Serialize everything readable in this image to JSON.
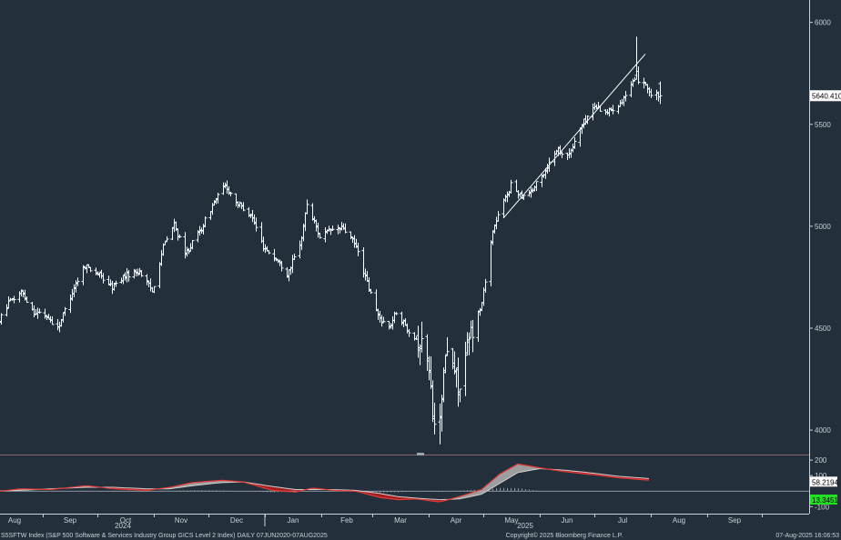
{
  "chart_data": [
    {
      "type": "ohlc",
      "ticker": "S5SFTW Index (S&P 500 Software & Services Industry Group GICS Level 2 Index) DAILY",
      "y_axis_position": "right",
      "ylim": [
        3880,
        6110
      ],
      "yticks": [
        4000,
        4500,
        5000,
        5500,
        6000
      ],
      "last_price_label": "5640.4102",
      "last_price": 5640.41,
      "x_tick_labels": [
        "Aug",
        "Sep",
        "Oct",
        "Nov",
        "Dec",
        "Jan",
        "Feb",
        "Mar",
        "Apr",
        "May",
        "Jun",
        "Jul",
        "Aug",
        "Sep"
      ],
      "year_labels": [
        "2024",
        "2025"
      ],
      "trendline": {
        "from": [
          "2025-05-12",
          5040
        ],
        "to": [
          "2025-07-29",
          5845
        ]
      },
      "bar_color": "#ffffff",
      "anchors": [
        [
          "2024-08-07",
          4520
        ],
        [
          "2024-08-13",
          4620
        ],
        [
          "2024-08-20",
          4680
        ],
        [
          "2024-08-27",
          4580
        ],
        [
          "2024-09-03",
          4560
        ],
        [
          "2024-09-09",
          4500
        ],
        [
          "2024-09-18",
          4700
        ],
        [
          "2024-09-24",
          4810
        ],
        [
          "2024-10-02",
          4760
        ],
        [
          "2024-10-09",
          4700
        ],
        [
          "2024-10-16",
          4760
        ],
        [
          "2024-10-24",
          4780
        ],
        [
          "2024-10-31",
          4680
        ],
        [
          "2024-11-06",
          4900
        ],
        [
          "2024-11-12",
          5010
        ],
        [
          "2024-11-18",
          4860
        ],
        [
          "2024-11-27",
          4990
        ],
        [
          "2024-12-04",
          5120
        ],
        [
          "2024-12-10",
          5200
        ],
        [
          "2024-12-17",
          5110
        ],
        [
          "2024-12-24",
          5060
        ],
        [
          "2024-12-31",
          4900
        ],
        [
          "2025-01-08",
          4830
        ],
        [
          "2025-01-13",
          4770
        ],
        [
          "2025-01-20",
          4900
        ],
        [
          "2025-01-24",
          5110
        ],
        [
          "2025-01-31",
          4950
        ],
        [
          "2025-02-06",
          4980
        ],
        [
          "2025-02-13",
          4990
        ],
        [
          "2025-02-20",
          4900
        ],
        [
          "2025-02-26",
          4720
        ],
        [
          "2025-03-04",
          4560
        ],
        [
          "2025-03-10",
          4500
        ],
        [
          "2025-03-14",
          4580
        ],
        [
          "2025-03-20",
          4500
        ],
        [
          "2025-03-25",
          4450
        ],
        [
          "2025-03-31",
          4380
        ],
        [
          "2025-04-03",
          4100
        ],
        [
          "2025-04-07",
          4000
        ],
        [
          "2025-04-10",
          4380
        ],
        [
          "2025-04-14",
          4320
        ],
        [
          "2025-04-18",
          4200
        ],
        [
          "2025-04-23",
          4450
        ],
        [
          "2025-04-30",
          4620
        ],
        [
          "2025-05-06",
          4980
        ],
        [
          "2025-05-12",
          5120
        ],
        [
          "2025-05-16",
          5200
        ],
        [
          "2025-05-22",
          5150
        ],
        [
          "2025-05-28",
          5180
        ],
        [
          "2025-06-03",
          5260
        ],
        [
          "2025-06-10",
          5380
        ],
        [
          "2025-06-17",
          5350
        ],
        [
          "2025-06-24",
          5500
        ],
        [
          "2025-07-01",
          5590
        ],
        [
          "2025-07-08",
          5560
        ],
        [
          "2025-07-14",
          5600
        ],
        [
          "2025-07-18",
          5640
        ],
        [
          "2025-07-22",
          5700
        ],
        [
          "2025-07-25",
          5720
        ],
        [
          "2025-07-29",
          5700
        ],
        [
          "2025-08-01",
          5640
        ]
      ],
      "special_bars": [
        [
          "2025-04-07",
          4040,
          4130,
          3930,
          4060
        ],
        [
          "2025-07-24",
          5740,
          5930,
          5720,
          5760
        ],
        [
          "2025-08-06",
          5700,
          5710,
          5600,
          5640
        ]
      ]
    },
    {
      "type": "indicator",
      "ylim": [
        -145,
        230
      ],
      "yticks": [
        200,
        100,
        -100
      ],
      "zero_line": 0,
      "labels": {
        "upper_line": "58.2194",
        "histogram": "13.3451"
      },
      "colors": {
        "upper_line": "#e53935",
        "lower_line": "#d0d0d0",
        "histogram": "#21e021",
        "fill_pos": "#b0b0b0",
        "fill_neg": "#b71c1c"
      },
      "line_a": [
        [
          "2024-08-01",
          -10
        ],
        [
          "2024-08-20",
          15
        ],
        [
          "2024-09-05",
          10
        ],
        [
          "2024-09-25",
          35
        ],
        [
          "2024-10-10",
          15
        ],
        [
          "2024-10-28",
          5
        ],
        [
          "2024-11-10",
          25
        ],
        [
          "2024-11-22",
          55
        ],
        [
          "2024-12-08",
          70
        ],
        [
          "2024-12-20",
          60
        ],
        [
          "2025-01-05",
          5
        ],
        [
          "2025-01-18",
          -5
        ],
        [
          "2025-01-27",
          20
        ],
        [
          "2025-02-08",
          5
        ],
        [
          "2025-02-20",
          0
        ],
        [
          "2025-03-05",
          -40
        ],
        [
          "2025-03-15",
          -55
        ],
        [
          "2025-03-25",
          -50
        ],
        [
          "2025-04-07",
          -70
        ],
        [
          "2025-04-18",
          -35
        ],
        [
          "2025-04-30",
          10
        ],
        [
          "2025-05-10",
          110
        ],
        [
          "2025-05-20",
          175
        ],
        [
          "2025-06-01",
          150
        ],
        [
          "2025-06-15",
          125
        ],
        [
          "2025-07-01",
          105
        ],
        [
          "2025-07-15",
          85
        ],
        [
          "2025-08-01",
          70
        ]
      ],
      "line_b": [
        [
          "2024-08-01",
          0
        ],
        [
          "2024-08-20",
          5
        ],
        [
          "2024-09-05",
          15
        ],
        [
          "2024-09-25",
          25
        ],
        [
          "2024-10-10",
          25
        ],
        [
          "2024-10-28",
          15
        ],
        [
          "2024-11-10",
          15
        ],
        [
          "2024-11-22",
          35
        ],
        [
          "2024-12-08",
          55
        ],
        [
          "2024-12-20",
          60
        ],
        [
          "2025-01-05",
          30
        ],
        [
          "2025-01-18",
          10
        ],
        [
          "2025-01-27",
          10
        ],
        [
          "2025-02-08",
          10
        ],
        [
          "2025-02-20",
          5
        ],
        [
          "2025-03-05",
          -15
        ],
        [
          "2025-03-15",
          -35
        ],
        [
          "2025-03-25",
          -45
        ],
        [
          "2025-04-07",
          -55
        ],
        [
          "2025-04-18",
          -50
        ],
        [
          "2025-04-30",
          -20
        ],
        [
          "2025-05-10",
          50
        ],
        [
          "2025-05-20",
          120
        ],
        [
          "2025-06-01",
          145
        ],
        [
          "2025-06-15",
          135
        ],
        [
          "2025-07-01",
          115
        ],
        [
          "2025-07-15",
          95
        ],
        [
          "2025-08-01",
          80
        ]
      ]
    }
  ],
  "footer": {
    "left": "S5SFTW Index (S&P 500 Software & Services Industry Group GICS Level 2 Index)  DAILY  07JUN2020-07AUG2025",
    "center": "Copyright© 2025 Bloomberg Finance L.P.",
    "right": "07-Aug-2025 16:06:53"
  }
}
